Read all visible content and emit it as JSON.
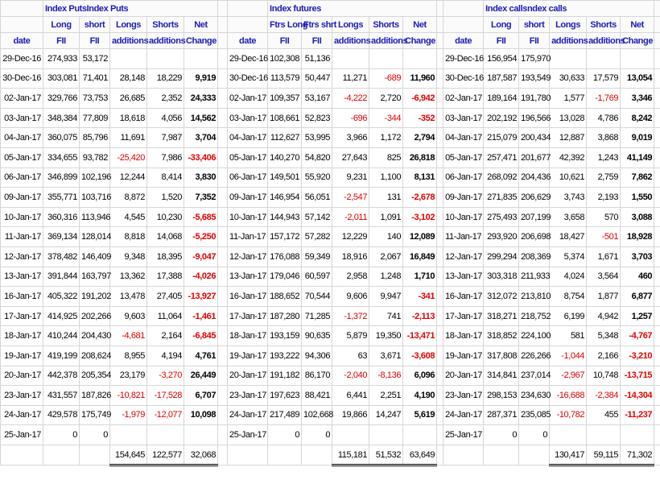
{
  "blocks": [
    {
      "title": "Index PutsIndex Puts",
      "headers": [
        [
          "Long",
          "short",
          "Longs",
          "Shorts",
          "Net"
        ],
        [
          "date",
          "FII",
          "FII",
          "additions",
          "additions",
          "Change"
        ]
      ],
      "rows": [
        [
          "29-Dec-16",
          "274,933",
          "53,172"
        ],
        [
          "30-Dec-16",
          "303,081",
          "71,401",
          "28,148",
          "18,229",
          "9,919"
        ],
        [
          "02-Jan-17",
          "329,766",
          "73,753",
          "26,685",
          "2,352",
          "24,333"
        ],
        [
          "03-Jan-17",
          "348,384",
          "77,809",
          "18,618",
          "4,056",
          "14,562"
        ],
        [
          "04-Jan-17",
          "360,075",
          "85,796",
          "11,691",
          "7,987",
          "3,704"
        ],
        [
          "05-Jan-17",
          "334,655",
          "93,782",
          "-25,420",
          "7,986",
          "-33,406"
        ],
        [
          "06-Jan-17",
          "346,899",
          "102,196",
          "12,244",
          "8,414",
          "3,830"
        ],
        [
          "09-Jan-17",
          "355,771",
          "103,716",
          "8,872",
          "1,520",
          "7,352"
        ],
        [
          "10-Jan-17",
          "360,316",
          "113,946",
          "4,545",
          "10,230",
          "-5,685"
        ],
        [
          "11-Jan-17",
          "369,134",
          "128,014",
          "8,818",
          "14,068",
          "-5,250"
        ],
        [
          "12-Jan-17",
          "378,482",
          "146,409",
          "9,348",
          "18,395",
          "-9,047"
        ],
        [
          "13-Jan-17",
          "391,844",
          "163,797",
          "13,362",
          "17,388",
          "-4,026"
        ],
        [
          "16-Jan-17",
          "405,322",
          "191,202",
          "13,478",
          "27,405",
          "-13,927"
        ],
        [
          "17-Jan-17",
          "414,925",
          "202,266",
          "9,603",
          "11,064",
          "-1,461"
        ],
        [
          "18-Jan-17",
          "410,244",
          "204,430",
          "-4,681",
          "2,164",
          "-6,845"
        ],
        [
          "19-Jan-17",
          "419,199",
          "208,624",
          "8,955",
          "4,194",
          "4,761"
        ],
        [
          "20-Jan-17",
          "442,378",
          "205,354",
          "23,179",
          "-3,270",
          "26,449"
        ],
        [
          "23-Jan-17",
          "431,557",
          "187,826",
          "-10,821",
          "-17,528",
          "6,707"
        ],
        [
          "24-Jan-17",
          "429,578",
          "175,749",
          "-1,979",
          "-12,077",
          "10,098"
        ],
        [
          "25-Jan-17",
          "0",
          "0"
        ]
      ],
      "totals": [
        "154,645",
        "122,577",
        "32,068"
      ]
    },
    {
      "title": "Index futures",
      "headers": [
        [
          "Ftrs Long",
          "Ftrs shrt",
          "Longs",
          "Shorts",
          "Net"
        ],
        [
          "date",
          "FII",
          "FII",
          "additions",
          "additions",
          "Change"
        ]
      ],
      "rows": [
        [
          "29-Dec-16",
          "102,308",
          "51,136"
        ],
        [
          "30-Dec-16",
          "113,579",
          "50,447",
          "11,271",
          "-689",
          "11,960"
        ],
        [
          "02-Jan-17",
          "109,357",
          "53,167",
          "-4,222",
          "2,720",
          "-6,942"
        ],
        [
          "03-Jan-17",
          "108,661",
          "52,823",
          "-696",
          "-344",
          "-352"
        ],
        [
          "04-Jan-17",
          "112,627",
          "53,995",
          "3,966",
          "1,172",
          "2,794"
        ],
        [
          "05-Jan-17",
          "140,270",
          "54,820",
          "27,643",
          "825",
          "26,818"
        ],
        [
          "06-Jan-17",
          "149,501",
          "55,920",
          "9,231",
          "1,100",
          "8,131"
        ],
        [
          "09-Jan-17",
          "146,954",
          "56,051",
          "-2,547",
          "131",
          "-2,678"
        ],
        [
          "10-Jan-17",
          "144,943",
          "57,142",
          "-2,011",
          "1,091",
          "-3,102"
        ],
        [
          "11-Jan-17",
          "157,172",
          "57,282",
          "12,229",
          "140",
          "12,089"
        ],
        [
          "12-Jan-17",
          "176,088",
          "59,349",
          "18,916",
          "2,067",
          "16,849"
        ],
        [
          "13-Jan-17",
          "179,046",
          "60,597",
          "2,958",
          "1,248",
          "1,710"
        ],
        [
          "16-Jan-17",
          "188,652",
          "70,544",
          "9,606",
          "9,947",
          "-341"
        ],
        [
          "17-Jan-17",
          "187,280",
          "71,285",
          "-1,372",
          "741",
          "-2,113"
        ],
        [
          "18-Jan-17",
          "193,159",
          "90,635",
          "5,879",
          "19,350",
          "-13,471"
        ],
        [
          "19-Jan-17",
          "193,222",
          "94,306",
          "63",
          "3,671",
          "-3,608"
        ],
        [
          "20-Jan-17",
          "191,182",
          "86,170",
          "-2,040",
          "-8,136",
          "6,096"
        ],
        [
          "23-Jan-17",
          "197,623",
          "88,421",
          "6,441",
          "2,251",
          "4,190"
        ],
        [
          "24-Jan-17",
          "217,489",
          "102,668",
          "19,866",
          "14,247",
          "5,619"
        ],
        [
          "25-Jan-17",
          "0",
          "0"
        ]
      ],
      "totals": [
        "115,181",
        "51,532",
        "63,649"
      ]
    },
    {
      "title": "Index callsndex calls",
      "headers": [
        [
          "Long",
          "short",
          "Longs",
          "Shorts",
          "Net"
        ],
        [
          "date",
          "FII",
          "FII",
          "additions",
          "additions",
          "Change"
        ]
      ],
      "rows": [
        [
          "29-Dec-16",
          "156,954",
          "175,970"
        ],
        [
          "30-Dec-16",
          "187,587",
          "193,549",
          "30,633",
          "17,579",
          "13,054"
        ],
        [
          "02-Jan-17",
          "189,164",
          "191,780",
          "1,577",
          "-1,769",
          "3,346"
        ],
        [
          "03-Jan-17",
          "202,192",
          "196,566",
          "13,028",
          "4,786",
          "8,242"
        ],
        [
          "04-Jan-17",
          "215,079",
          "200,434",
          "12,887",
          "3,868",
          "9,019"
        ],
        [
          "05-Jan-17",
          "257,471",
          "201,677",
          "42,392",
          "1,243",
          "41,149"
        ],
        [
          "06-Jan-17",
          "268,092",
          "204,436",
          "10,621",
          "2,759",
          "7,862"
        ],
        [
          "09-Jan-17",
          "271,835",
          "206,629",
          "3,743",
          "2,193",
          "1,550"
        ],
        [
          "10-Jan-17",
          "275,493",
          "207,199",
          "3,658",
          "570",
          "3,088"
        ],
        [
          "11-Jan-17",
          "293,920",
          "206,698",
          "18,427",
          "-501",
          "18,928"
        ],
        [
          "12-Jan-17",
          "299,294",
          "208,369",
          "5,374",
          "1,671",
          "3,703"
        ],
        [
          "13-Jan-17",
          "303,318",
          "211,933",
          "4,024",
          "3,564",
          "460"
        ],
        [
          "16-Jan-17",
          "312,072",
          "213,810",
          "8,754",
          "1,877",
          "6,877"
        ],
        [
          "17-Jan-17",
          "318,271",
          "218,752",
          "6,199",
          "4,942",
          "1,257"
        ],
        [
          "18-Jan-17",
          "318,852",
          "224,100",
          "581",
          "5,348",
          "-4,767"
        ],
        [
          "19-Jan-17",
          "317,808",
          "226,266",
          "-1,044",
          "2,166",
          "-3,210"
        ],
        [
          "20-Jan-17",
          "314,841",
          "237,014",
          "-2,967",
          "10,748",
          "-13,715"
        ],
        [
          "23-Jan-17",
          "298,153",
          "234,630",
          "-16,688",
          "-2,384",
          "-14,304"
        ],
        [
          "24-Jan-17",
          "287,371",
          "235,085",
          "-10,782",
          "455",
          "-11,237"
        ],
        [
          "25-Jan-17",
          "0",
          "0"
        ]
      ],
      "totals": [
        "130,417",
        "59,115",
        "71,302"
      ]
    }
  ]
}
